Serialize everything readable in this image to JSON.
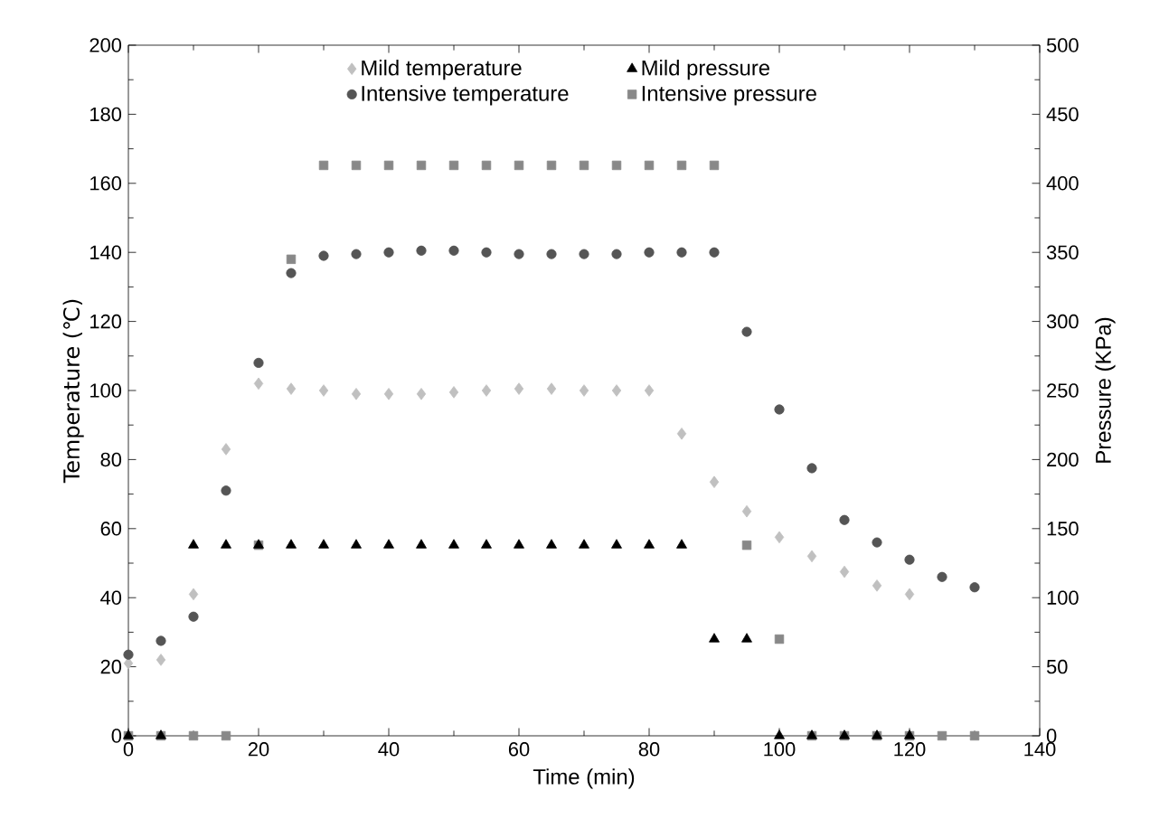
{
  "chart_data": {
    "type": "scatter",
    "xlabel": "Time (min)",
    "ylabel": "Temperature (℃)",
    "y2label": "Pressure (KPa)",
    "xlim": [
      0,
      140
    ],
    "xticks": [
      0,
      20,
      40,
      60,
      80,
      100,
      120,
      140
    ],
    "ylim": [
      0,
      200
    ],
    "yticks": [
      0,
      20,
      40,
      60,
      80,
      100,
      120,
      140,
      160,
      180,
      200
    ],
    "y2lim": [
      0,
      500
    ],
    "y2ticks": [
      0,
      50,
      100,
      150,
      200,
      250,
      300,
      350,
      400,
      450,
      500
    ],
    "legend": "top",
    "grid": false,
    "series": [
      {
        "name": "Mild temperature",
        "color": "#c0c0c0",
        "marker": "diamond",
        "x": [
          0,
          5,
          10,
          15,
          20,
          25,
          30,
          35,
          40,
          45,
          50,
          55,
          60,
          65,
          70,
          75,
          80,
          85,
          90,
          95,
          100,
          105,
          110,
          115,
          120
        ],
        "values": [
          21,
          22,
          41,
          83,
          102,
          100.5,
          100,
          99,
          99,
          99,
          99.5,
          100,
          100.5,
          100.5,
          100,
          100,
          100,
          87.5,
          73.5,
          65,
          57.5,
          52,
          47.5,
          43.5,
          41
        ]
      },
      {
        "name": "Mild pressure",
        "color": "#000000",
        "marker": "triangle",
        "axis": "y2",
        "x": [
          0,
          5,
          10,
          15,
          20,
          25,
          30,
          35,
          40,
          45,
          50,
          55,
          60,
          65,
          70,
          75,
          80,
          85,
          90,
          95,
          100,
          105,
          110,
          115,
          120
        ],
        "values": [
          0,
          0,
          138,
          138,
          138,
          138,
          138,
          138,
          138,
          138,
          138,
          138,
          138,
          138,
          138,
          138,
          138,
          138,
          70,
          70,
          0,
          0,
          0,
          0,
          0
        ]
      },
      {
        "name": "Intensive temperature",
        "color": "#555555",
        "marker": "circle",
        "x": [
          0,
          5,
          10,
          15,
          20,
          25,
          30,
          35,
          40,
          45,
          50,
          55,
          60,
          65,
          70,
          75,
          80,
          85,
          90,
          95,
          100,
          105,
          110,
          115,
          120,
          125,
          130
        ],
        "values": [
          23.5,
          27.5,
          34.5,
          71,
          108,
          134,
          139,
          139.5,
          140,
          140.5,
          140.5,
          140,
          139.5,
          139.5,
          139.5,
          139.5,
          140,
          140,
          140,
          117,
          94.5,
          77.5,
          62.5,
          56,
          51,
          46,
          43
        ]
      },
      {
        "name": "Intensive pressure",
        "color": "#888888",
        "marker": "square",
        "axis": "y2",
        "x": [
          0,
          5,
          10,
          15,
          20,
          25,
          30,
          35,
          40,
          45,
          50,
          55,
          60,
          65,
          70,
          75,
          80,
          85,
          90,
          95,
          100,
          105,
          110,
          115,
          120,
          125,
          130
        ],
        "values": [
          0,
          0,
          0,
          0,
          138,
          345,
          413,
          413,
          413,
          413,
          413,
          413,
          413,
          413,
          413,
          413,
          413,
          413,
          413,
          138,
          70,
          0,
          0,
          0,
          0,
          0,
          0
        ]
      }
    ]
  }
}
